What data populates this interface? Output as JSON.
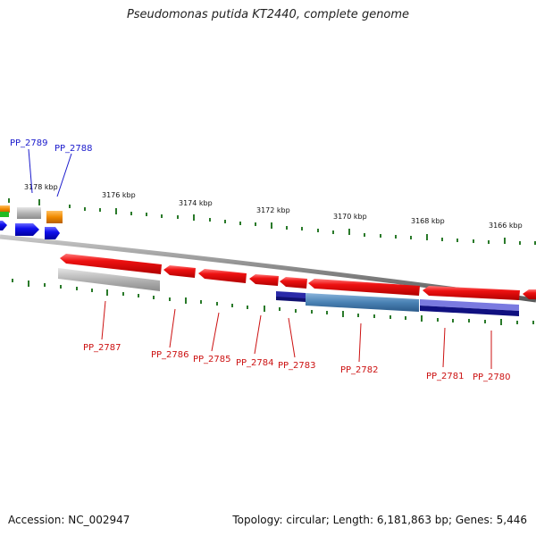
{
  "title": "Pseudomonas putida KT2440, complete genome",
  "accession": "Accession: NC_002947",
  "topology": "Topology: circular; Length: 6,181,863 bp; Genes: 5,446",
  "colors": {
    "backbone": "#8a8a8a",
    "tick": "#2a7a2a",
    "gene_red": "#ee1111",
    "gene_blue": "#1010ee",
    "gene_grey": "#b4b4b4",
    "gene_orange": "#f08a00",
    "gene_green": "#22bb22",
    "feature_steelblue": "#4a82b4",
    "feature_navy": "#101080",
    "label_blue": "#1a1acc",
    "label_red": "#cc1111"
  },
  "scale_labels": [
    {
      "text": "3178 kbp",
      "kbp": 3178
    },
    {
      "text": "3176 kbp",
      "kbp": 3176
    },
    {
      "text": "3174 kbp",
      "kbp": 3174
    },
    {
      "text": "3172 kbp",
      "kbp": 3172
    },
    {
      "text": "3170 kbp",
      "kbp": 3170
    },
    {
      "text": "3168 kbp",
      "kbp": 3168
    },
    {
      "text": "3166 kbp",
      "kbp": 3166
    }
  ],
  "gene_labels": [
    {
      "text": "PP_2789",
      "strand": "forward"
    },
    {
      "text": "PP_2788",
      "strand": "forward"
    },
    {
      "text": "PP_2787",
      "strand": "reverse"
    },
    {
      "text": "PP_2786",
      "strand": "reverse"
    },
    {
      "text": "PP_2785",
      "strand": "reverse"
    },
    {
      "text": "PP_2784",
      "strand": "reverse"
    },
    {
      "text": "PP_2783",
      "strand": "reverse"
    },
    {
      "text": "PP_2782",
      "strand": "reverse"
    },
    {
      "text": "PP_2781",
      "strand": "reverse"
    },
    {
      "text": "PP_2780",
      "strand": "reverse"
    }
  ]
}
